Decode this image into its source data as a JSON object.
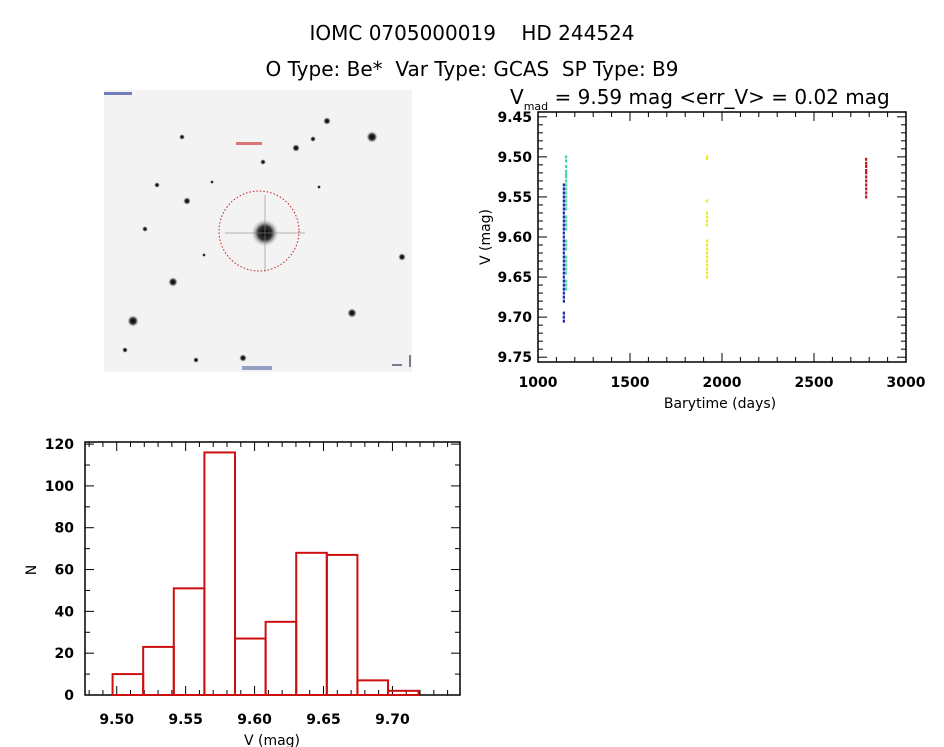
{
  "header": {
    "title": "IOMC 0705000019    HD 244524",
    "subtitle": "O Type: Be*  Var Type: GCAS  SP Type: B9"
  },
  "chart_data": [
    {
      "type": "scatter",
      "title_main": "V",
      "title_sub": "mad",
      "title_rest": " = 9.59 mag <err_V> = 0.02 mag",
      "xlabel": "Barytime (days)",
      "ylabel": "V (mag)",
      "xlim": [
        1000,
        3000
      ],
      "ylim": [
        9.756,
        9.444
      ],
      "xticks": [
        "1000",
        "1500",
        "2000",
        "2500",
        "3000"
      ],
      "yticks": [
        "9.45",
        "9.50",
        "9.55",
        "9.60",
        "9.65",
        "9.70",
        "9.75"
      ],
      "series": [
        {
          "name": "season-1-blue",
          "color": "#1a2aa8",
          "x": 1140,
          "y": [
            9.535,
            9.54,
            9.545,
            9.55,
            9.555,
            9.56,
            9.565,
            9.57,
            9.575,
            9.58,
            9.585,
            9.59,
            9.595,
            9.6,
            9.605,
            9.61,
            9.615,
            9.62,
            9.625,
            9.63,
            9.635,
            9.64,
            9.645,
            9.65,
            9.655,
            9.66,
            9.665,
            9.67,
            9.675,
            9.68,
            9.695,
            9.7,
            9.705
          ]
        },
        {
          "name": "season-1-green",
          "color": "#3cd9a0",
          "x": 1152,
          "y": [
            9.5,
            9.505,
            9.512,
            9.518,
            9.522,
            9.525,
            9.53,
            9.535,
            9.54,
            9.545,
            9.55,
            9.555,
            9.56,
            9.565,
            9.575,
            9.58,
            9.585,
            9.59,
            9.605,
            9.61,
            9.615,
            9.625,
            9.63,
            9.635,
            9.64,
            9.645,
            9.655,
            9.66,
            9.665
          ]
        },
        {
          "name": "season-2-yellow",
          "color": "#e8ec30",
          "x": 1918,
          "y": [
            9.5,
            9.502,
            9.555,
            9.57,
            9.575,
            9.58,
            9.585,
            9.605,
            9.61,
            9.615,
            9.62,
            9.625,
            9.63,
            9.635,
            9.64,
            9.645,
            9.65
          ]
        },
        {
          "name": "season-3-red",
          "color": "#c01818",
          "x": 2783,
          "y": [
            9.503,
            9.508,
            9.512,
            9.517,
            9.52,
            9.525,
            9.53,
            9.535,
            9.54,
            9.545,
            9.55
          ]
        }
      ]
    },
    {
      "type": "bar",
      "subtype": "histogram",
      "xlabel": "V (mag)",
      "ylabel": "N",
      "xlim": [
        9.477,
        9.749
      ],
      "ylim": [
        0,
        121
      ],
      "xticks": [
        "9.50",
        "9.55",
        "9.60",
        "9.65",
        "9.70"
      ],
      "yticks": [
        "0",
        "20",
        "40",
        "60",
        "80",
        "100",
        "120"
      ],
      "bin_start": 9.497,
      "bin_width": 0.0222,
      "values": [
        10,
        23,
        51,
        116,
        27,
        35,
        68,
        67,
        7,
        2
      ],
      "color": "#cc1010"
    }
  ]
}
